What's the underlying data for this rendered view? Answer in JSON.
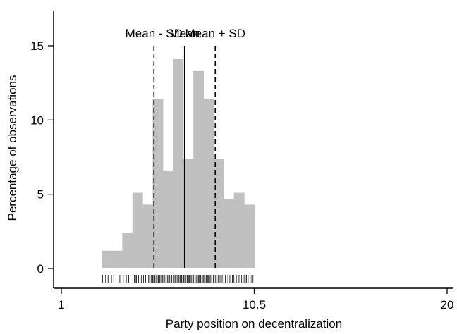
{
  "chart_data": {
    "type": "histogram",
    "xlabel": "Party position on decentralization",
    "ylabel": "Percentage of observations",
    "xlim": [
      1,
      20
    ],
    "ylim": [
      0,
      17
    ],
    "x_ticks": [
      {
        "value": 1,
        "label": "1"
      },
      {
        "value": 10.5,
        "label": "10.5"
      },
      {
        "value": 20,
        "label": "20"
      }
    ],
    "y_ticks": [
      {
        "value": 0,
        "label": "0"
      },
      {
        "value": 5,
        "label": "5"
      },
      {
        "value": 10,
        "label": "10"
      },
      {
        "value": 15,
        "label": "15"
      }
    ],
    "bin_width": 0.5,
    "bins": [
      {
        "x0": 3.0,
        "value": 1.2
      },
      {
        "x0": 3.5,
        "value": 1.2
      },
      {
        "x0": 4.0,
        "value": 2.4
      },
      {
        "x0": 4.5,
        "value": 5.1
      },
      {
        "x0": 5.0,
        "value": 4.3
      },
      {
        "x0": 5.5,
        "value": 11.4
      },
      {
        "x0": 6.0,
        "value": 6.6
      },
      {
        "x0": 6.5,
        "value": 14.1
      },
      {
        "x0": 7.0,
        "value": 7.4
      },
      {
        "x0": 7.5,
        "value": 13.3
      },
      {
        "x0": 8.0,
        "value": 11.4
      },
      {
        "x0": 8.5,
        "value": 7.4
      },
      {
        "x0": 9.0,
        "value": 4.7
      },
      {
        "x0": 9.5,
        "value": 5.1
      },
      {
        "x0": 10.0,
        "value": 4.3
      }
    ],
    "reference_lines": [
      {
        "label": "Mean - SD",
        "x": 5.56,
        "style": "dashed"
      },
      {
        "label": "Mean",
        "x": 7.07,
        "style": "solid"
      },
      {
        "label": "Mean + SD",
        "x": 8.58,
        "style": "dashed"
      }
    ],
    "rug": [
      3.03,
      3.18,
      3.3,
      3.47,
      3.58,
      3.88,
      4.05,
      4.2,
      4.32,
      4.52,
      4.6,
      4.65,
      4.7,
      4.8,
      4.88,
      4.95,
      5.05,
      5.15,
      5.22,
      5.3,
      5.35,
      5.42,
      5.5,
      5.55,
      5.6,
      5.66,
      5.72,
      5.78,
      5.84,
      5.9,
      5.96,
      6.0,
      6.05,
      6.1,
      6.16,
      6.22,
      6.28,
      6.34,
      6.4,
      6.44,
      6.5,
      6.55,
      6.6,
      6.64,
      6.7,
      6.76,
      6.8,
      6.86,
      6.92,
      6.98,
      7.03,
      7.08,
      7.14,
      7.2,
      7.26,
      7.3,
      7.36,
      7.42,
      7.48,
      7.52,
      7.58,
      7.64,
      7.7,
      7.75,
      7.8,
      7.86,
      7.92,
      7.98,
      8.02,
      8.08,
      8.14,
      8.2,
      8.25,
      8.3,
      8.36,
      8.42,
      8.48,
      8.53,
      8.6,
      8.66,
      8.72,
      8.78,
      8.85,
      8.92,
      9.0,
      9.08,
      9.2,
      9.3,
      9.42,
      9.5,
      9.62,
      9.75,
      9.88,
      10.0,
      10.06,
      10.12,
      10.2,
      10.3,
      10.38,
      10.44
    ],
    "colors": {
      "bar": "#c0c0c0",
      "line": "#000000",
      "axis": "#000000"
    }
  }
}
